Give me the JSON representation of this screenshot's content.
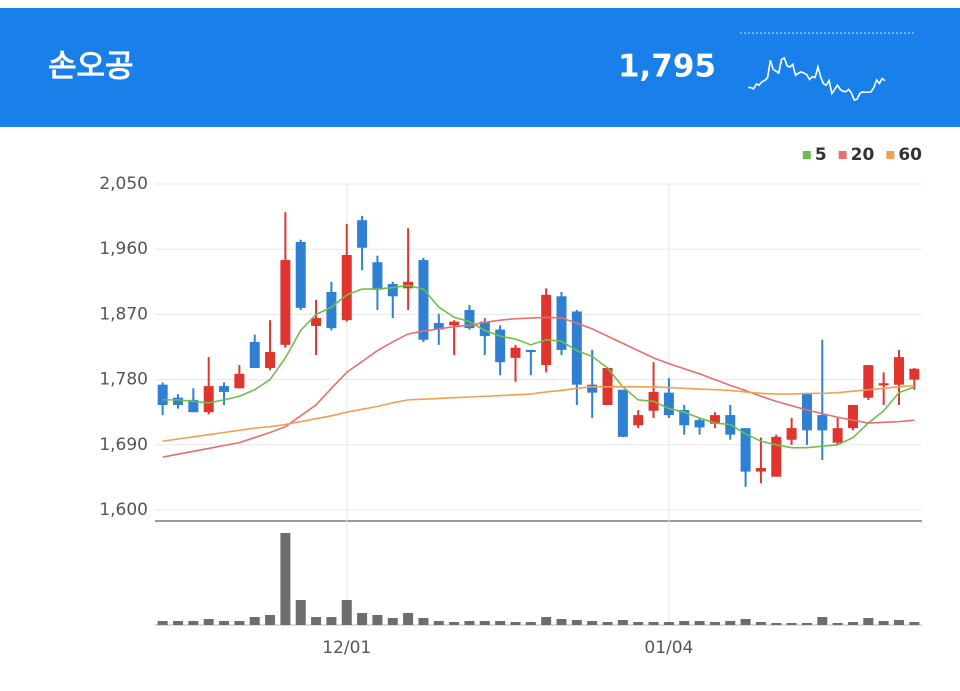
{
  "header": {
    "title": "손오공",
    "price": "1,795"
  },
  "chart_data": {
    "type": "candlestick",
    "categories": [
      null,
      null,
      null,
      null,
      null,
      null,
      null,
      null,
      null,
      null,
      null,
      null,
      "12/01",
      null,
      null,
      null,
      null,
      null,
      null,
      null,
      null,
      null,
      null,
      null,
      null,
      null,
      null,
      null,
      null,
      null,
      null,
      null,
      null,
      "01/04",
      null,
      null,
      null,
      null,
      null,
      null,
      null,
      null,
      null,
      null,
      null,
      null,
      null,
      null,
      null,
      null
    ],
    "open": [
      1773,
      1755,
      1752,
      1735,
      1771,
      1768,
      1832,
      1796,
      1828,
      1970,
      1854,
      1901,
      1862,
      2000,
      1942,
      1912,
      1906,
      1945,
      1858,
      1855,
      1876,
      1860,
      1849,
      1810,
      1821,
      1800,
      1895,
      1874,
      1773,
      1745,
      1766,
      1717,
      1737,
      1762,
      1738,
      1724,
      1719,
      1731,
      1713,
      1653,
      1646,
      1697,
      1760,
      1731,
      1693,
      1713,
      1755,
      1772,
      1773,
      1780
    ],
    "high": [
      1776,
      1760,
      1768,
      1811,
      1776,
      1800,
      1842,
      1862,
      2011,
      1973,
      1890,
      1915,
      1995,
      2006,
      1951,
      1915,
      1989,
      1948,
      1871,
      1862,
      1883,
      1865,
      1855,
      1828,
      1821,
      1906,
      1901,
      1876,
      1821,
      1797,
      1766,
      1738,
      1804,
      1782,
      1745,
      1727,
      1735,
      1745,
      1713,
      1700,
      1704,
      1727,
      1760,
      1835,
      1727,
      1745,
      1800,
      1790,
      1821,
      1796
    ],
    "low": [
      1731,
      1740,
      1735,
      1732,
      1745,
      1768,
      1796,
      1793,
      1824,
      1876,
      1814,
      1848,
      1860,
      1931,
      1876,
      1865,
      1876,
      1832,
      1828,
      1814,
      1849,
      1814,
      1786,
      1777,
      1786,
      1790,
      1814,
      1745,
      1727,
      1745,
      1701,
      1713,
      1727,
      1727,
      1704,
      1704,
      1713,
      1697,
      1632,
      1637,
      1646,
      1690,
      1690,
      1669,
      1690,
      1710,
      1752,
      1745,
      1745,
      1766
    ],
    "close": [
      1745,
      1745,
      1735,
      1771,
      1763,
      1788,
      1796,
      1818,
      1945,
      1879,
      1865,
      1851,
      1952,
      1962,
      1904,
      1895,
      1915,
      1835,
      1849,
      1860,
      1851,
      1840,
      1804,
      1824,
      1818,
      1897,
      1821,
      1773,
      1762,
      1796,
      1701,
      1731,
      1763,
      1731,
      1717,
      1714,
      1731,
      1704,
      1653,
      1658,
      1701,
      1713,
      1710,
      1710,
      1713,
      1745,
      1800,
      1775,
      1811,
      1795
    ],
    "up_color": "#e0342f",
    "down_color": "#2f7fd3",
    "series": [
      {
        "name": "5",
        "color": "#6cc04a",
        "values": [
          1752,
          1752,
          1750,
          1748,
          1752,
          1757,
          1766,
          1780,
          1810,
          1848,
          1870,
          1880,
          1897,
          1905,
          1905,
          1907,
          1910,
          1905,
          1880,
          1866,
          1860,
          1848,
          1840,
          1836,
          1828,
          1835,
          1833,
          1820,
          1812,
          1796,
          1770,
          1752,
          1750,
          1740,
          1735,
          1727,
          1720,
          1718,
          1705,
          1695,
          1690,
          1686,
          1686,
          1688,
          1690,
          1700,
          1720,
          1737,
          1762,
          1770
        ]
      },
      {
        "name": "20",
        "color": "#e5706c",
        "values": [
          1673,
          1677,
          1681,
          1685,
          1689,
          1693,
          1700,
          1707,
          1715,
          1730,
          1745,
          1768,
          1790,
          1805,
          1820,
          1832,
          1843,
          1847,
          1850,
          1853,
          1855,
          1859,
          1862,
          1864,
          1865,
          1866,
          1865,
          1858,
          1850,
          1840,
          1830,
          1820,
          1810,
          1802,
          1795,
          1788,
          1780,
          1772,
          1765,
          1757,
          1750,
          1744,
          1738,
          1733,
          1728,
          1724,
          1720,
          1721,
          1722,
          1724
        ]
      },
      {
        "name": "60",
        "color": "#f0a050",
        "values": [
          1695,
          1698,
          1701,
          1704,
          1707,
          1710,
          1713,
          1715,
          1718,
          1722,
          1726,
          1730,
          1735,
          1739,
          1743,
          1748,
          1752,
          1753,
          1754,
          1755,
          1756,
          1757,
          1758,
          1759,
          1760,
          1763,
          1765,
          1768,
          1770,
          1770,
          1770,
          1770,
          1770,
          1769,
          1768,
          1767,
          1766,
          1765,
          1763,
          1761,
          1760,
          1760,
          1761,
          1761,
          1762,
          1764,
          1766,
          1768,
          1770,
          1772
        ]
      }
    ],
    "volume": [
      4,
      4,
      4,
      6,
      4,
      4,
      8,
      10,
      92,
      25,
      8,
      8,
      25,
      12,
      10,
      7,
      12,
      7,
      4,
      3,
      4,
      4,
      4,
      3,
      3,
      8,
      6,
      5,
      4,
      3,
      5,
      3,
      3,
      3,
      4,
      4,
      3,
      4,
      6,
      3,
      2,
      2,
      2,
      8,
      2,
      3,
      7,
      4,
      5,
      3
    ],
    "volume_color": "#6d6d6d",
    "ylim": [
      1600,
      2050
    ],
    "yticks": [
      {
        "value": 1600,
        "label": "1,600"
      },
      {
        "value": 1690,
        "label": "1,690"
      },
      {
        "value": 1780,
        "label": "1,780"
      },
      {
        "value": 1870,
        "label": "1,870"
      },
      {
        "value": 1960,
        "label": "1,960"
      },
      {
        "value": 2050,
        "label": "2,050"
      }
    ],
    "grid": true,
    "legend": "top-right"
  }
}
